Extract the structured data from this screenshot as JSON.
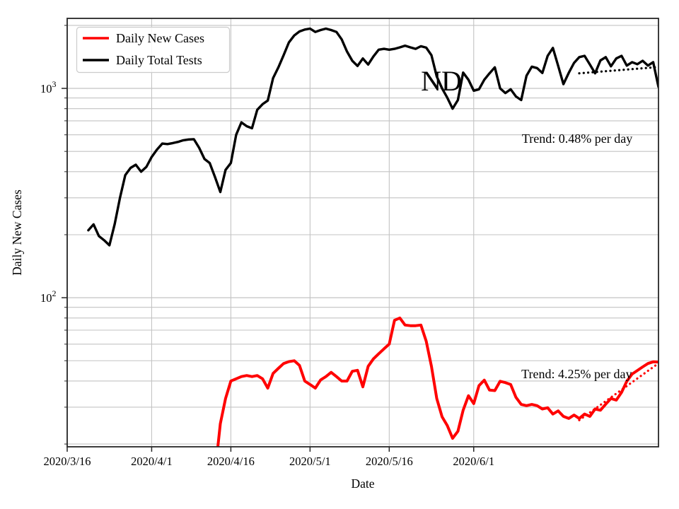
{
  "figure": {
    "state_label": "ND"
  },
  "legend": {
    "entries": [
      {
        "label": "Daily New Cases",
        "color": "#ff0000",
        "style": "solid"
      },
      {
        "label": "Daily Total Tests",
        "color": "#000000",
        "style": "solid"
      }
    ]
  },
  "colors": {
    "cases": "#ff0000",
    "tests": "#000000",
    "grid": "#c3c3c3",
    "spine": "#262626",
    "legend_border": "#cccccc"
  },
  "chart_data": {
    "type": "line",
    "title": "",
    "xlabel": "Date",
    "ylabel": "Daily New Cases",
    "y_scale": "log",
    "ylim": [
      19.4,
      2160
    ],
    "xlim_days": [
      0,
      112
    ],
    "x_epoch": "2020/3/16",
    "x_ticks": [
      {
        "day": 0,
        "label": "2020/3/16"
      },
      {
        "day": 16,
        "label": "2020/4/1"
      },
      {
        "day": 31,
        "label": "2020/4/16"
      },
      {
        "day": 46,
        "label": "2020/5/1"
      },
      {
        "day": 61,
        "label": "2020/5/16"
      },
      {
        "day": 77,
        "label": "2020/6/1"
      }
    ],
    "y_major_ticks": [
      {
        "value": 100,
        "mantissa": "10",
        "exponent": "2"
      },
      {
        "value": 1000,
        "mantissa": "10",
        "exponent": "3"
      }
    ],
    "y_gridlines_minor": [
      20,
      30,
      40,
      50,
      60,
      70,
      80,
      90,
      200,
      300,
      400,
      500,
      600,
      700,
      800,
      900,
      2000
    ],
    "y_gridlines_major": [
      100,
      1000
    ],
    "grid_on": true,
    "legend_position": "upper-left",
    "series": [
      {
        "name": "Daily Total Tests",
        "color": "#000000",
        "style": "solid",
        "width": 3.4,
        "points": [
          [
            4,
            210
          ],
          [
            5,
            224
          ],
          [
            6,
            197
          ],
          [
            7,
            188
          ],
          [
            8,
            178
          ],
          [
            9,
            225
          ],
          [
            10,
            300
          ],
          [
            11,
            385
          ],
          [
            12,
            417
          ],
          [
            13,
            432
          ],
          [
            14,
            400
          ],
          [
            15,
            422
          ],
          [
            16,
            470
          ],
          [
            17,
            510
          ],
          [
            18,
            545
          ],
          [
            19,
            542
          ],
          [
            20,
            548
          ],
          [
            21,
            555
          ],
          [
            22,
            565
          ],
          [
            23,
            570
          ],
          [
            24,
            572
          ],
          [
            25,
            520
          ],
          [
            26,
            460
          ],
          [
            27,
            440
          ],
          [
            28,
            377
          ],
          [
            29,
            320
          ],
          [
            30,
            408
          ],
          [
            31,
            440
          ],
          [
            32,
            600
          ],
          [
            33,
            688
          ],
          [
            34,
            660
          ],
          [
            35,
            645
          ],
          [
            36,
            790
          ],
          [
            37,
            840
          ],
          [
            38,
            875
          ],
          [
            39,
            1120
          ],
          [
            40,
            1260
          ],
          [
            41,
            1440
          ],
          [
            42,
            1660
          ],
          [
            43,
            1790
          ],
          [
            44,
            1870
          ],
          [
            45,
            1910
          ],
          [
            46,
            1930
          ],
          [
            47,
            1860
          ],
          [
            48,
            1900
          ],
          [
            49,
            1930
          ],
          [
            50,
            1900
          ],
          [
            51,
            1860
          ],
          [
            52,
            1715
          ],
          [
            53,
            1500
          ],
          [
            54,
            1355
          ],
          [
            55,
            1280
          ],
          [
            56,
            1390
          ],
          [
            57,
            1300
          ],
          [
            58,
            1420
          ],
          [
            59,
            1530
          ],
          [
            60,
            1545
          ],
          [
            61,
            1530
          ],
          [
            62,
            1545
          ],
          [
            63,
            1570
          ],
          [
            64,
            1600
          ],
          [
            65,
            1570
          ],
          [
            66,
            1545
          ],
          [
            67,
            1590
          ],
          [
            68,
            1565
          ],
          [
            69,
            1440
          ],
          [
            70,
            1140
          ],
          [
            71,
            1000
          ],
          [
            72,
            903
          ],
          [
            73,
            800
          ],
          [
            74,
            880
          ],
          [
            75,
            1190
          ],
          [
            76,
            1100
          ],
          [
            77,
            975
          ],
          [
            78,
            990
          ],
          [
            79,
            1100
          ],
          [
            80,
            1180
          ],
          [
            81,
            1260
          ],
          [
            82,
            1000
          ],
          [
            83,
            950
          ],
          [
            84,
            990
          ],
          [
            85,
            915
          ],
          [
            86,
            880
          ],
          [
            87,
            1150
          ],
          [
            88,
            1270
          ],
          [
            89,
            1250
          ],
          [
            90,
            1185
          ],
          [
            91,
            1430
          ],
          [
            92,
            1560
          ],
          [
            93,
            1280
          ],
          [
            94,
            1048
          ],
          [
            95,
            1186
          ],
          [
            96,
            1323
          ],
          [
            97,
            1410
          ],
          [
            98,
            1430
          ],
          [
            99,
            1300
          ],
          [
            100,
            1180
          ],
          [
            101,
            1360
          ],
          [
            102,
            1410
          ],
          [
            103,
            1275
          ],
          [
            104,
            1390
          ],
          [
            105,
            1430
          ],
          [
            106,
            1285
          ],
          [
            107,
            1335
          ],
          [
            108,
            1305
          ],
          [
            109,
            1355
          ],
          [
            110,
            1285
          ],
          [
            111,
            1335
          ],
          [
            112,
            1016
          ]
        ]
      },
      {
        "name": "Daily New Cases",
        "color": "#ff0000",
        "style": "solid",
        "width": 4,
        "points": [
          [
            28.5,
            19
          ],
          [
            29,
            25
          ],
          [
            30,
            33
          ],
          [
            31,
            40
          ],
          [
            32,
            41
          ],
          [
            33,
            42
          ],
          [
            34,
            42.5
          ],
          [
            35,
            42
          ],
          [
            36,
            42.5
          ],
          [
            37,
            41
          ],
          [
            38,
            37
          ],
          [
            39,
            43.5
          ],
          [
            40,
            46
          ],
          [
            41,
            48.5
          ],
          [
            42,
            49.5
          ],
          [
            43,
            50
          ],
          [
            44,
            47.5
          ],
          [
            45,
            40
          ],
          [
            46,
            38.5
          ],
          [
            47,
            37
          ],
          [
            48,
            40.5
          ],
          [
            49,
            42
          ],
          [
            50,
            44
          ],
          [
            51,
            42
          ],
          [
            52,
            40
          ],
          [
            53,
            40
          ],
          [
            54,
            44.5
          ],
          [
            55,
            45
          ],
          [
            56,
            37.5
          ],
          [
            57,
            47
          ],
          [
            58,
            51
          ],
          [
            59,
            54
          ],
          [
            60,
            57
          ],
          [
            61,
            60
          ],
          [
            62,
            78
          ],
          [
            63,
            80
          ],
          [
            64,
            74
          ],
          [
            65,
            73.5
          ],
          [
            66,
            73.5
          ],
          [
            67,
            74
          ],
          [
            68,
            62
          ],
          [
            69,
            47
          ],
          [
            70,
            33
          ],
          [
            71,
            27
          ],
          [
            72,
            24.5
          ],
          [
            73,
            21.3
          ],
          [
            74,
            23
          ],
          [
            75,
            29
          ],
          [
            76,
            34
          ],
          [
            77,
            31.2
          ],
          [
            78,
            38
          ],
          [
            79,
            40.4
          ],
          [
            80,
            36.2
          ],
          [
            81,
            36
          ],
          [
            82,
            39.9
          ],
          [
            83,
            39.3
          ],
          [
            84,
            38.5
          ],
          [
            85,
            33.4
          ],
          [
            86,
            30.9
          ],
          [
            87,
            30.5
          ],
          [
            88,
            30.9
          ],
          [
            89,
            30.5
          ],
          [
            90,
            29.4
          ],
          [
            91,
            29.8
          ],
          [
            92,
            27.8
          ],
          [
            93,
            28.8
          ],
          [
            94,
            27.1
          ],
          [
            95,
            26.5
          ],
          [
            96,
            27.5
          ],
          [
            97,
            26.5
          ],
          [
            98,
            27.8
          ],
          [
            99,
            27.1
          ],
          [
            100,
            29.4
          ],
          [
            101,
            29
          ],
          [
            102,
            31
          ],
          [
            103,
            33
          ],
          [
            104,
            32.4
          ],
          [
            105,
            35.3
          ],
          [
            106,
            39.9
          ],
          [
            107,
            43.2
          ],
          [
            108,
            44.9
          ],
          [
            109,
            46.7
          ],
          [
            110,
            48.5
          ],
          [
            111,
            49.4
          ],
          [
            112,
            49.3
          ]
        ]
      },
      {
        "name": "Daily Total Tests trend",
        "color": "#000000",
        "style": "dotted",
        "width": 3.2,
        "points": [
          [
            97,
            1180
          ],
          [
            112,
            1265
          ]
        ]
      },
      {
        "name": "Daily New Cases trend",
        "color": "#ff0000",
        "style": "dotted",
        "width": 3.2,
        "points": [
          [
            97,
            26
          ],
          [
            112,
            48.6
          ]
        ]
      }
    ],
    "annotations": [
      {
        "id": "nd-label",
        "text": "ND",
        "day": 67,
        "value": 977,
        "anchor": "start"
      },
      {
        "id": "trend-tests",
        "text": "Trend: 0.48% per day",
        "day": 96.6,
        "value": 550,
        "anchor": "middle"
      },
      {
        "id": "trend-cases",
        "text": "Trend: 4.25% per day",
        "day": 96.5,
        "value": 41.3,
        "anchor": "middle"
      }
    ]
  }
}
